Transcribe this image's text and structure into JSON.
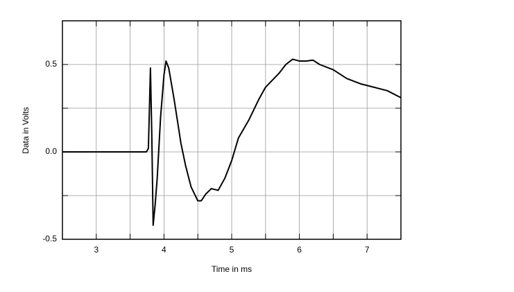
{
  "chart_data": {
    "type": "line",
    "x_label": "Time in ms",
    "y_label": "Data in Volts",
    "x": [
      2.5,
      3.74,
      3.77,
      3.8,
      3.82,
      3.84,
      3.87,
      3.9,
      3.95,
      4.0,
      4.03,
      4.07,
      4.15,
      4.25,
      4.32,
      4.4,
      4.5,
      4.55,
      4.62,
      4.7,
      4.8,
      4.9,
      5.0,
      5.1,
      5.25,
      5.4,
      5.5,
      5.6,
      5.7,
      5.8,
      5.9,
      6.0,
      6.1,
      6.2,
      6.3,
      6.5,
      6.7,
      6.9,
      7.1,
      7.3,
      7.5
    ],
    "values": [
      0,
      0,
      0.02,
      0.48,
      0.1,
      -0.42,
      -0.3,
      -0.15,
      0.2,
      0.44,
      0.52,
      0.48,
      0.3,
      0.05,
      -0.08,
      -0.2,
      -0.28,
      -0.28,
      -0.24,
      -0.21,
      -0.22,
      -0.15,
      -0.05,
      0.08,
      0.18,
      0.3,
      0.37,
      0.41,
      0.45,
      0.5,
      0.53,
      0.52,
      0.52,
      0.525,
      0.5,
      0.47,
      0.42,
      0.39,
      0.37,
      0.35,
      0.31
    ],
    "color": "#000000",
    "xlim": [
      2.5,
      7.5
    ],
    "xticks": [
      3,
      4,
      5,
      6,
      7
    ],
    "minor_xticks": [
      3.5,
      4.5,
      5.5,
      6.5
    ],
    "ylim": [
      -0.5,
      0.75
    ],
    "yticks": [
      -0.5,
      {
        "value": 0,
        "label": "0.0"
      },
      0.5
    ],
    "minor_yticks": [
      -0.25,
      0.25
    ],
    "grid": true
  }
}
